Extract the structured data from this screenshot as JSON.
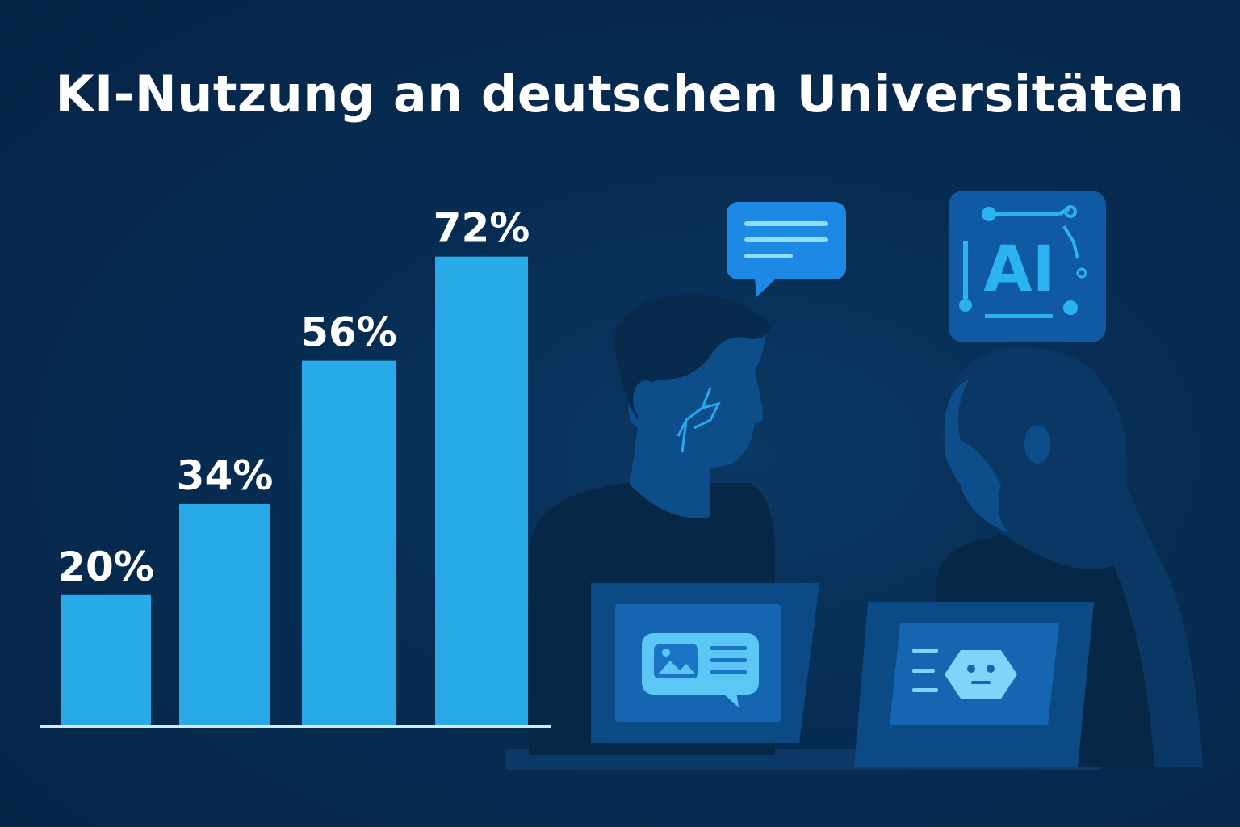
{
  "chart_data": {
    "type": "bar",
    "title": "KI-Nutzung an deutschen Universitäten",
    "xlabel": "",
    "ylabel": "",
    "categories": [
      "",
      "",
      "",
      ""
    ],
    "values": [
      20,
      34,
      56,
      72
    ],
    "value_labels": [
      "20%",
      "34%",
      "56%",
      "72%"
    ],
    "ylim": [
      0,
      100
    ],
    "grid": false,
    "legend": "none",
    "colors": {
      "bar": "#29aae8",
      "baseline": "#cfe9ff",
      "label": "#ffffff"
    }
  },
  "illustration": {
    "badge_text": "AI",
    "icons": [
      "chat-bubble-icon",
      "ai-circuit-icon",
      "image-message-icon",
      "robot-face-icon"
    ]
  },
  "colors": {
    "background": "#06294d",
    "accent": "#1e88e5",
    "silhouette": "#0a2f55"
  }
}
